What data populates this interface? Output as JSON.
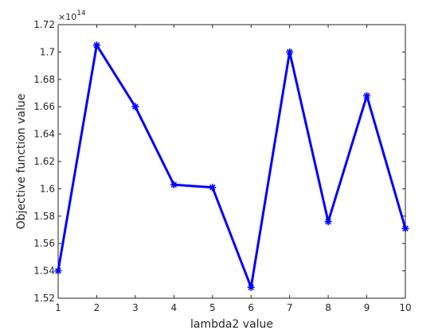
{
  "chart_data": {
    "type": "line",
    "title": "",
    "xlabel": "lambda2 value",
    "ylabel": "Objective function value",
    "x": [
      1,
      2,
      3,
      4,
      5,
      6,
      7,
      8,
      9,
      10
    ],
    "series": [
      {
        "values": [
          1.54,
          1.705,
          1.66,
          1.603,
          1.601,
          1.528,
          1.7,
          1.576,
          1.668,
          1.571
        ],
        "color": "#0000ff",
        "marker": "asterisk"
      }
    ],
    "xlim": [
      1,
      10
    ],
    "ylim": [
      1.52,
      1.72
    ],
    "xticks": [
      "1",
      "2",
      "3",
      "4",
      "5",
      "6",
      "7",
      "8",
      "9",
      "10"
    ],
    "yticks": [
      "1.52",
      "1.54",
      "1.56",
      "1.58",
      "1.6",
      "1.62",
      "1.64",
      "1.66",
      "1.68",
      "1.7",
      "1.72"
    ],
    "y_multiplier": {
      "base": "×10",
      "exponent": "14"
    },
    "grid": false,
    "legend": "none"
  }
}
